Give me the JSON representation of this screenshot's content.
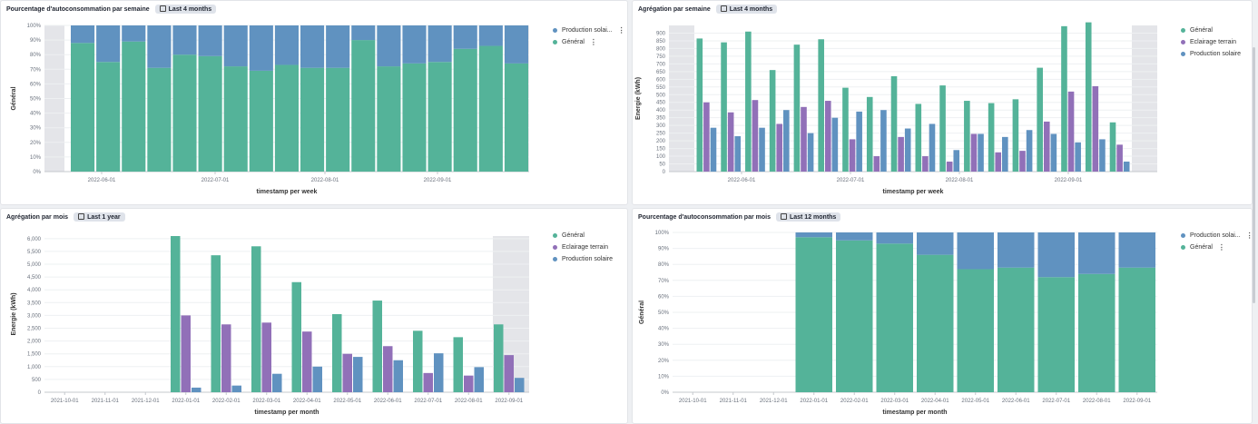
{
  "colors": {
    "general": "#54b399",
    "eclairage": "#9170b8",
    "solar": "#6092c0",
    "highlight": "#e4e5e9",
    "grid": "#eef0f2",
    "axis": "#6a717d"
  },
  "panels": [
    {
      "title": "Pourcentage d'autoconsommation par semaine",
      "badge": "Last 4 months",
      "legend": [
        {
          "label": "Production solai...",
          "color_key": "solar"
        },
        {
          "label": "Général",
          "color_key": "general"
        }
      ]
    },
    {
      "title": "Agrégation par semaine",
      "badge": "Last 4 months",
      "legend": [
        {
          "label": "Général",
          "color_key": "general"
        },
        {
          "label": "Eclairage terrain",
          "color_key": "eclairage"
        },
        {
          "label": "Production solaire",
          "color_key": "solar"
        }
      ]
    },
    {
      "title": "Agrégation par mois",
      "badge": "Last 1 year",
      "legend": [
        {
          "label": "Général",
          "color_key": "general"
        },
        {
          "label": "Eclairage terrain",
          "color_key": "eclairage"
        },
        {
          "label": "Production solaire",
          "color_key": "solar"
        }
      ]
    },
    {
      "title": "Pourcentage d'autoconsommation par mois",
      "badge": "Last 12 months",
      "legend": [
        {
          "label": "Production solai...",
          "color_key": "solar"
        },
        {
          "label": "Général",
          "color_key": "general"
        }
      ]
    }
  ],
  "chart_data": [
    {
      "type": "bar",
      "stacked_percent": true,
      "xlabel": "timestamp per week",
      "ylabel": "Général",
      "ylim": [
        0,
        100
      ],
      "yticks": [
        "0%",
        "10%",
        "20%",
        "30%",
        "40%",
        "50%",
        "60%",
        "70%",
        "80%",
        "90%",
        "100%"
      ],
      "xtick_labels": [
        "2022-06-01",
        "2022-07-01",
        "2022-08-01",
        "2022-09-01"
      ],
      "series": [
        {
          "name": "Général",
          "values": [
            88,
            75,
            89,
            71,
            80,
            79,
            72,
            69,
            73,
            71,
            71,
            90,
            72,
            74,
            75,
            84,
            86,
            74
          ]
        },
        {
          "name": "Production solai...",
          "values": [
            12,
            25,
            11,
            29,
            20,
            21,
            28,
            31,
            27,
            29,
            29,
            10,
            28,
            26,
            25,
            16,
            14,
            26
          ]
        }
      ]
    },
    {
      "type": "bar",
      "xlabel": "timestamp per week",
      "ylabel": "Energie (kWh)",
      "ylim": [
        0,
        950
      ],
      "yticks": [
        "0",
        "50",
        "100",
        "150",
        "200",
        "250",
        "300",
        "350",
        "400",
        "450",
        "500",
        "550",
        "600",
        "650",
        "700",
        "750",
        "800",
        "850",
        "900"
      ],
      "xtick_labels": [
        "2022-06-01",
        "2022-07-01",
        "2022-08-01",
        "2022-09-01"
      ],
      "series": [
        {
          "name": "Général",
          "values": [
            865,
            840,
            910,
            660,
            825,
            860,
            545,
            485,
            620,
            440,
            560,
            460,
            445,
            470,
            675,
            945,
            970,
            320
          ]
        },
        {
          "name": "Eclairage terrain",
          "values": [
            450,
            385,
            465,
            310,
            420,
            460,
            210,
            100,
            225,
            100,
            65,
            245,
            125,
            135,
            325,
            520,
            555,
            175
          ]
        },
        {
          "name": "Production solaire",
          "values": [
            285,
            230,
            285,
            400,
            250,
            350,
            390,
            400,
            280,
            310,
            140,
            245,
            225,
            270,
            245,
            190,
            210,
            65
          ]
        }
      ]
    },
    {
      "type": "bar",
      "xlabel": "timestamp per month",
      "ylabel": "Energie (kWh)",
      "ylim": [
        0,
        6100
      ],
      "yticks": [
        "0",
        "500",
        "1,000",
        "1,500",
        "2,000",
        "2,500",
        "3,000",
        "3,500",
        "4,000",
        "4,500",
        "5,000",
        "5,500",
        "6,000"
      ],
      "categories": [
        "2021-10-01",
        "2021-11-01",
        "2021-12-01",
        "2022-01-01",
        "2022-02-01",
        "2022-03-01",
        "2022-04-01",
        "2022-05-01",
        "2022-06-01",
        "2022-07-01",
        "2022-08-01",
        "2022-09-01"
      ],
      "series": [
        {
          "name": "Général",
          "values": [
            0,
            0,
            0,
            6100,
            5350,
            5700,
            4300,
            3050,
            3580,
            2400,
            2150,
            2650
          ]
        },
        {
          "name": "Eclairage terrain",
          "values": [
            0,
            0,
            0,
            3000,
            2650,
            2720,
            2370,
            1500,
            1800,
            750,
            650,
            1450
          ]
        },
        {
          "name": "Production solaire",
          "values": [
            0,
            0,
            0,
            180,
            260,
            720,
            1000,
            1380,
            1250,
            1520,
            980,
            560
          ]
        }
      ]
    },
    {
      "type": "bar",
      "stacked_percent": true,
      "xlabel": "timestamp per month",
      "ylabel": "Général",
      "ylim": [
        0,
        100
      ],
      "yticks": [
        "0%",
        "10%",
        "20%",
        "30%",
        "40%",
        "50%",
        "60%",
        "70%",
        "80%",
        "90%",
        "100%"
      ],
      "categories": [
        "2021-10-01",
        "2021-11-01",
        "2021-12-01",
        "2022-01-01",
        "2022-02-01",
        "2022-03-01",
        "2022-04-01",
        "2022-05-01",
        "2022-06-01",
        "2022-07-01",
        "2022-08-01",
        "2022-09-01"
      ],
      "series": [
        {
          "name": "Général",
          "values": [
            0,
            0,
            0,
            97,
            95,
            93,
            86,
            77,
            78,
            72,
            74,
            78
          ]
        },
        {
          "name": "Production solai...",
          "values": [
            0,
            0,
            0,
            3,
            5,
            7,
            14,
            23,
            22,
            28,
            26,
            22
          ]
        }
      ]
    }
  ]
}
